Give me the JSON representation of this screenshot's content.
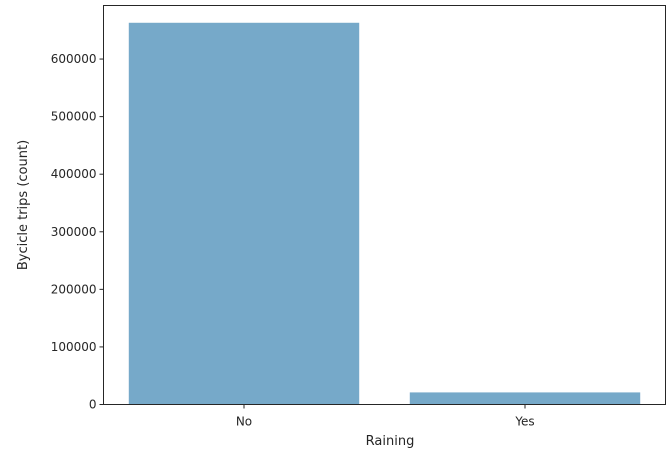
{
  "chart_data": {
    "type": "bar",
    "categories": [
      "No",
      "Yes"
    ],
    "values": [
      663000,
      21000
    ],
    "xlabel": "Raining",
    "ylabel": "Bycicle trips (count)",
    "ylim": [
      0,
      693000
    ],
    "yticks": [
      0,
      100000,
      200000,
      300000,
      400000,
      500000,
      600000
    ],
    "ytick_labels": [
      "0",
      "100000",
      "200000",
      "300000",
      "400000",
      "500000",
      "600000"
    ],
    "bar_color": "#76a9c9",
    "grid": false
  }
}
